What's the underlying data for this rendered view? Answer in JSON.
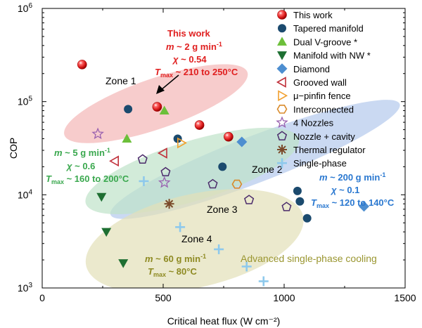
{
  "chart_data": {
    "type": "scatter",
    "xlabel": "Critical heat flux (W cm⁻²)",
    "ylabel": "COP",
    "xlim": [
      0,
      1500
    ],
    "ylim_log10": [
      3,
      6
    ],
    "xticks": [
      0,
      500,
      1000,
      1500
    ],
    "xtick_labels": [
      "0",
      "500",
      "1000",
      "1500"
    ],
    "ytick_exponents": [
      3,
      4,
      5,
      6
    ],
    "ytick_labels": [
      "10",
      "10",
      "10",
      "10"
    ],
    "ytick_sup": [
      "3",
      "4",
      "5",
      "6"
    ],
    "zones": [
      {
        "name": "Zone 1",
        "color": "#f4b6b6",
        "cx": 470,
        "cy": 95000,
        "rx": 400,
        "ry_log": 0.27,
        "angle_deg": -19
      },
      {
        "name": "Zone 2",
        "color": "#b3c9ec",
        "cx": 880,
        "cy": 24000,
        "rx": 640,
        "ry_log": 0.25,
        "angle_deg": -21
      },
      {
        "name": "Zone 3",
        "color": "#bfe3c9",
        "cx": 620,
        "cy": 18000,
        "rx": 460,
        "ry_log": 0.32,
        "angle_deg": -17
      },
      {
        "name": "Zone 4",
        "color": "#e2e0b8",
        "cx": 630,
        "cy": 3200,
        "rx": 460,
        "ry_log": 0.5,
        "angle_deg": -13
      }
    ],
    "series": [
      {
        "name": "This work",
        "marker": "sphere",
        "color": "#e02020",
        "points": [
          [
            165,
            250000
          ],
          [
            475,
            88000
          ],
          [
            650,
            56000
          ],
          [
            770,
            42000
          ]
        ]
      },
      {
        "name": "Tapered manifold",
        "marker": "circle",
        "color": "#1b4a6e",
        "points": [
          [
            355,
            83000
          ],
          [
            560,
            40000
          ],
          [
            745,
            20000
          ],
          [
            1055,
            11000
          ],
          [
            1065,
            8500
          ],
          [
            1095,
            5600
          ]
        ]
      },
      {
        "name": "Dual V-groove  *",
        "marker": "triangle-up",
        "color": "#6cbf3a",
        "points": [
          [
            350,
            40000
          ],
          [
            505,
            80000
          ]
        ]
      },
      {
        "name": "Manifold with NW *",
        "marker": "triangle-down",
        "color": "#1e6f32",
        "points": [
          [
            245,
            9500
          ],
          [
            265,
            4000
          ],
          [
            335,
            1850
          ]
        ]
      },
      {
        "name": "Diamond",
        "marker": "diamond",
        "color": "#4d8ed0",
        "points": [
          [
            825,
            37000
          ],
          [
            1330,
            7500
          ]
        ]
      },
      {
        "name": "Grooved wall",
        "marker": "triangle-left",
        "color": "#c0303a",
        "points": [
          [
            300,
            23000
          ],
          [
            500,
            28000
          ]
        ]
      },
      {
        "name": "μ−pinfin fence",
        "marker": "triangle-right",
        "color": "#f2a02e",
        "points": [
          [
            575,
            36000
          ]
        ]
      },
      {
        "name": "Interconnected",
        "marker": "hexagon",
        "color": "#d98a2a",
        "points": [
          [
            805,
            13000
          ]
        ]
      },
      {
        "name": "4 Nozzles",
        "marker": "star",
        "color": "#9a62b0",
        "points": [
          [
            230,
            45000
          ],
          [
            505,
            13500
          ]
        ]
      },
      {
        "name": "Nozzle + cavity",
        "marker": "pentagon",
        "color": "#4a2a6a",
        "points": [
          [
            415,
            24000
          ],
          [
            510,
            17500
          ],
          [
            705,
            13000
          ],
          [
            855,
            8800
          ],
          [
            1010,
            7400
          ]
        ]
      },
      {
        "name": "Thermal regulator",
        "marker": "asterisk",
        "color": "#7a4a2a",
        "points": [
          [
            525,
            8000
          ]
        ]
      },
      {
        "name": "Single-phase",
        "marker": "plus",
        "color": "#8ec9ec",
        "points": [
          [
            420,
            14000
          ],
          [
            570,
            4500
          ],
          [
            730,
            2600
          ],
          [
            845,
            1700
          ],
          [
            915,
            1180
          ]
        ]
      }
    ],
    "zone_labels": [
      "Zone 1",
      "Zone 2",
      "Zone 3",
      "Zone 4"
    ],
    "annotations": {
      "this_work": {
        "title": "This work",
        "m": "m",
        "m_value": " ~ 2 g min",
        "m_sup": "-1",
        "chi": "χ",
        "chi_value": " ~ 0.54",
        "t": "T",
        "t_sub": "max",
        "t_value": " ~ 210 to 250°C",
        "color": "#e02020"
      },
      "green_block": {
        "m": "m",
        "m_value": " ~ 5 g min",
        "m_sup": "-1",
        "chi": "χ",
        "chi_value": " ~ 0.6",
        "t": "T",
        "t_sub": "max",
        "t_value": " ~ 160 to 200°C",
        "color": "#3aa84e"
      },
      "blue_block": {
        "m": "m",
        "m_value": " ~ 200 g min",
        "m_sup": "-1",
        "chi": "χ",
        "chi_value": " ~ 0.1",
        "t": "T",
        "t_sub": "max",
        "t_value": " ~ 120 to 140°C",
        "color": "#2a78d0"
      },
      "olive_block": {
        "m": "m",
        "m_value": " ~ 60 g min",
        "m_sup": "-1",
        "t": "T",
        "t_sub": "max",
        "t_value": " ~ 80°C",
        "color": "#8e8a22"
      },
      "single_phase_note": {
        "text": "Advanced single-phase cooling",
        "color": "#9a9630"
      }
    },
    "legend_position": "top-right"
  }
}
